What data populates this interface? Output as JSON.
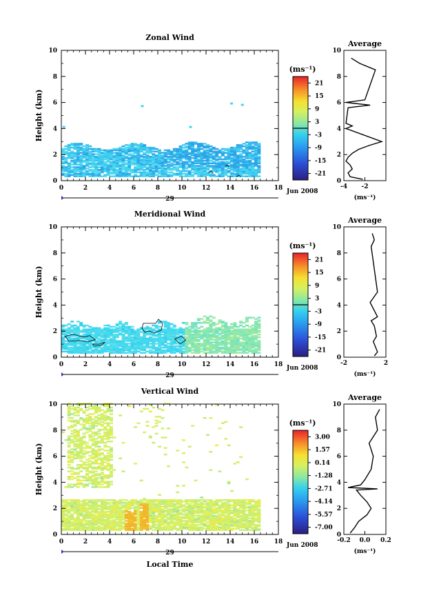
{
  "figure": {
    "time_axis_title": "Local Time",
    "day_label": "29",
    "date_label": "Jun 2008"
  },
  "chart_data": [
    {
      "type": "heatmap",
      "title": "Zonal Wind",
      "xlabel": "",
      "ylabel": "Height (km)",
      "xlim": [
        0,
        18
      ],
      "ylim": [
        0,
        10
      ],
      "x_ticks": [
        "0",
        "2",
        "4",
        "6",
        "8",
        "10",
        "12",
        "14",
        "16",
        "18"
      ],
      "y_ticks": [
        "0",
        "2",
        "4",
        "6",
        "8",
        "10"
      ],
      "colorbar": {
        "unit_label": "(ms⁻¹)",
        "ticks": [
          "21",
          "15",
          "9",
          "3",
          "-3",
          "-9",
          "-15",
          "-21"
        ],
        "range": [
          -24,
          24
        ]
      },
      "data_extent": {
        "time_hours": [
          0,
          16.4
        ],
        "height_km": [
          0.3,
          2.8
        ]
      },
      "dominant_value_range": [
        -9,
        -3
      ],
      "isolated_echoes_height_km": [
        4.2,
        5.8,
        6.0
      ],
      "average_profile": {
        "title": "Average",
        "xlabel": "(ms⁻¹)",
        "x_ticks": [
          "-4",
          "-2"
        ],
        "xlim": [
          -4,
          0
        ],
        "height_km": [
          0.1,
          0.3,
          0.6,
          0.9,
          1.2,
          1.5,
          1.8,
          2.1,
          2.4,
          2.7,
          3.0,
          4.0,
          4.2,
          4.4,
          5.6,
          5.8,
          6.0,
          6.2,
          8.5,
          9.0,
          9.4
        ],
        "speed": [
          -2.2,
          -3.4,
          -3.6,
          -3.2,
          -3.4,
          -3.8,
          -3.6,
          -3.2,
          -2.6,
          -1.6,
          -0.4,
          -3.8,
          -3.2,
          -3.8,
          -3.6,
          -1.5,
          -3.8,
          -2.0,
          -1.0,
          -2.5,
          -3.3
        ]
      }
    },
    {
      "type": "heatmap",
      "title": "Meridional Wind",
      "xlabel": "",
      "ylabel": "Height (km)",
      "xlim": [
        0,
        18
      ],
      "ylim": [
        0,
        10
      ],
      "x_ticks": [
        "0",
        "2",
        "4",
        "6",
        "8",
        "10",
        "12",
        "14",
        "16",
        "18"
      ],
      "y_ticks": [
        "0",
        "2",
        "4",
        "6",
        "8",
        "10"
      ],
      "colorbar": {
        "unit_label": "(ms⁻¹)",
        "ticks": [
          "21",
          "15",
          "9",
          "3",
          "-3",
          "-9",
          "-15",
          "-21"
        ],
        "range": [
          -24,
          24
        ]
      },
      "data_extent": {
        "time_hours": [
          0,
          16.4
        ],
        "height_km": [
          0.3,
          3.1
        ]
      },
      "dominant_value_range": [
        -3,
        3
      ],
      "average_profile": {
        "title": "Average",
        "xlabel": "(ms⁻¹)",
        "x_ticks": [
          "-2",
          "2"
        ],
        "xlim": [
          -2,
          2
        ],
        "height_km": [
          0.1,
          0.4,
          0.8,
          1.2,
          1.6,
          2.0,
          2.4,
          2.8,
          3.1,
          4.2,
          5.0,
          8.5,
          9.0,
          9.5
        ],
        "speed": [
          0.9,
          1.2,
          1.0,
          0.8,
          1.1,
          1.0,
          0.9,
          0.6,
          1.2,
          0.5,
          1.2,
          0.6,
          0.9,
          0.7
        ]
      }
    },
    {
      "type": "heatmap",
      "title": "Vertical Wind",
      "xlabel": "Local Time",
      "ylabel": "Height (km)",
      "xlim": [
        0,
        18
      ],
      "ylim": [
        0,
        10
      ],
      "x_ticks": [
        "0",
        "2",
        "4",
        "6",
        "8",
        "10",
        "12",
        "14",
        "16",
        "18"
      ],
      "y_ticks": [
        "0",
        "2",
        "4",
        "6",
        "8",
        "10"
      ],
      "colorbar": {
        "unit_label": "(ms⁻¹)",
        "ticks": [
          "3.00",
          "1.57",
          "0.14",
          "-1.28",
          "-2.71",
          "-4.14",
          "-5.57",
          "-7.00"
        ],
        "range": [
          -7.7,
          3.7
        ]
      },
      "data_extent": {
        "time_hours": [
          0,
          16.4
        ],
        "height_km": [
          0.3,
          10.0
        ]
      },
      "dominant_value_range": [
        0.14,
        1.57
      ],
      "average_profile": {
        "title": "Average",
        "xlabel": "(ms⁻¹)",
        "x_ticks": [
          "-0.2",
          "0.0",
          "0.2"
        ],
        "xlim": [
          -0.2,
          0.2
        ],
        "height_km": [
          0.1,
          0.5,
          1.0,
          1.5,
          2.0,
          2.5,
          3.0,
          3.4,
          3.5,
          3.6,
          3.8,
          4.2,
          5.0,
          6.0,
          7.0,
          8.0,
          9.0,
          9.6
        ],
        "speed": [
          -0.14,
          -0.1,
          -0.06,
          0.02,
          0.06,
          0.02,
          -0.04,
          -0.08,
          0.12,
          -0.16,
          -0.04,
          0.0,
          0.06,
          0.08,
          0.04,
          0.12,
          0.1,
          0.14
        ]
      }
    }
  ]
}
